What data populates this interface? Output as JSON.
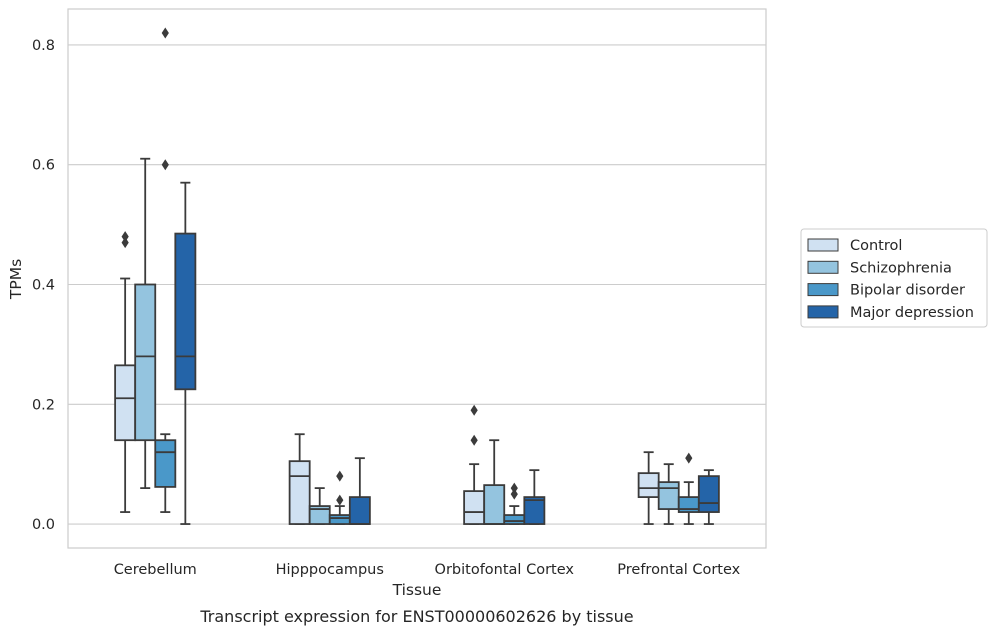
{
  "chart_data": {
    "type": "box",
    "xlabel": "Tissue",
    "ylabel": "TPMs",
    "caption": "Transcript expression for ENST00000602626 by tissue",
    "ylim": [
      -0.04,
      0.86
    ],
    "yticks": [
      "0.0",
      "0.2",
      "0.4",
      "0.6",
      "0.8"
    ],
    "grid": "horizontal",
    "legend_position": "right",
    "categories": [
      "Cerebellum",
      "Hipppocampus",
      "Orbitofontal Cortex",
      "Prefrontal Cortex"
    ],
    "series": [
      {
        "name": "Control",
        "color": "#d0e1f2",
        "boxes": [
          {
            "whislo": 0.02,
            "q1": 0.14,
            "med": 0.21,
            "q3": 0.265,
            "whishi": 0.41,
            "fliers": [
              0.47,
              0.48
            ]
          },
          {
            "whislo": 0.0,
            "q1": 0.0,
            "med": 0.08,
            "q3": 0.105,
            "whishi": 0.15,
            "fliers": []
          },
          {
            "whislo": 0.0,
            "q1": 0.0,
            "med": 0.02,
            "q3": 0.055,
            "whishi": 0.1,
            "fliers": [
              0.14,
              0.19
            ]
          },
          {
            "whislo": 0.0,
            "q1": 0.045,
            "med": 0.06,
            "q3": 0.085,
            "whishi": 0.12,
            "fliers": []
          }
        ]
      },
      {
        "name": "Schizophrenia",
        "color": "#94c4df",
        "boxes": [
          {
            "whislo": 0.06,
            "q1": 0.14,
            "med": 0.28,
            "q3": 0.4,
            "whishi": 0.61,
            "fliers": []
          },
          {
            "whislo": 0.0,
            "q1": 0.0,
            "med": 0.025,
            "q3": 0.03,
            "whishi": 0.06,
            "fliers": []
          },
          {
            "whislo": 0.0,
            "q1": 0.0,
            "med": 0.0,
            "q3": 0.065,
            "whishi": 0.14,
            "fliers": []
          },
          {
            "whislo": 0.0,
            "q1": 0.025,
            "med": 0.06,
            "q3": 0.07,
            "whishi": 0.1,
            "fliers": []
          }
        ]
      },
      {
        "name": "Bipolar disorder",
        "color": "#4a98c9",
        "boxes": [
          {
            "whislo": 0.02,
            "q1": 0.062,
            "med": 0.12,
            "q3": 0.14,
            "whishi": 0.15,
            "fliers": [
              0.6,
              0.82
            ]
          },
          {
            "whislo": 0.0,
            "q1": 0.0,
            "med": 0.01,
            "q3": 0.015,
            "whishi": 0.03,
            "fliers": [
              0.04,
              0.08
            ]
          },
          {
            "whislo": 0.0,
            "q1": 0.0,
            "med": 0.005,
            "q3": 0.015,
            "whishi": 0.03,
            "fliers": [
              0.05,
              0.06
            ]
          },
          {
            "whislo": 0.0,
            "q1": 0.02,
            "med": 0.025,
            "q3": 0.045,
            "whishi": 0.07,
            "fliers": [
              0.11
            ]
          }
        ]
      },
      {
        "name": "Major depression",
        "color": "#2464a8",
        "boxes": [
          {
            "whislo": 0.0,
            "q1": 0.225,
            "med": 0.28,
            "q3": 0.485,
            "whishi": 0.57,
            "fliers": []
          },
          {
            "whislo": 0.0,
            "q1": 0.0,
            "med": 0.0,
            "q3": 0.045,
            "whishi": 0.11,
            "fliers": []
          },
          {
            "whislo": 0.0,
            "q1": 0.0,
            "med": 0.04,
            "q3": 0.045,
            "whishi": 0.09,
            "fliers": []
          },
          {
            "whislo": 0.0,
            "q1": 0.02,
            "med": 0.035,
            "q3": 0.08,
            "whishi": 0.09,
            "fliers": []
          }
        ]
      }
    ]
  }
}
